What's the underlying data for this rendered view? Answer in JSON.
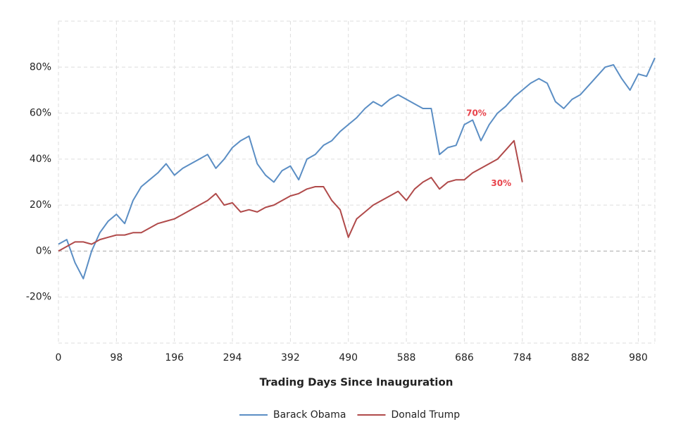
{
  "chart_data": {
    "type": "line",
    "xlabel": "Trading Days Since Inauguration",
    "x": [
      0,
      14,
      28,
      42,
      56,
      70,
      84,
      98,
      112,
      126,
      140,
      154,
      168,
      182,
      196,
      210,
      224,
      238,
      252,
      266,
      280,
      294,
      308,
      322,
      336,
      350,
      364,
      378,
      392,
      406,
      420,
      434,
      448,
      462,
      476,
      490,
      504,
      518,
      532,
      546,
      560,
      574,
      588,
      602,
      616,
      630,
      644,
      658,
      672,
      686,
      700,
      714,
      728,
      742,
      756,
      770,
      784,
      798,
      812,
      826,
      840,
      854,
      868,
      882,
      896,
      910,
      924,
      938,
      952,
      966,
      980,
      994,
      1008
    ],
    "series": [
      {
        "name": "Barack Obama",
        "color": "#5b8ec4",
        "values": [
          3,
          5,
          -5,
          -12,
          0,
          8,
          13,
          16,
          12,
          22,
          28,
          31,
          34,
          38,
          33,
          36,
          38,
          40,
          42,
          36,
          40,
          45,
          48,
          50,
          38,
          33,
          30,
          35,
          37,
          31,
          40,
          42,
          46,
          48,
          52,
          55,
          58,
          62,
          65,
          63,
          66,
          68,
          66,
          64,
          62,
          62,
          42,
          45,
          46,
          55,
          57,
          48,
          55,
          60,
          63,
          67,
          70,
          73,
          75,
          73,
          65,
          62,
          66,
          68,
          72,
          76,
          80,
          81,
          75,
          70,
          77,
          76,
          84
        ]
      },
      {
        "name": "Donald Trump",
        "color": "#b04a4a",
        "values": [
          0,
          2,
          4,
          4,
          3,
          5,
          6,
          7,
          7,
          8,
          8,
          10,
          12,
          13,
          14,
          16,
          18,
          20,
          22,
          25,
          20,
          21,
          17,
          18,
          17,
          19,
          20,
          22,
          24,
          25,
          27,
          28,
          28,
          22,
          18,
          6,
          14,
          17,
          20,
          22,
          24,
          26,
          22,
          27,
          30,
          32,
          27,
          30,
          31,
          31,
          34,
          36,
          38,
          40,
          44,
          48,
          30,
          null,
          null,
          null,
          null,
          null,
          null,
          null,
          null,
          null,
          null,
          null,
          null,
          null,
          null,
          null,
          null
        ]
      }
    ],
    "annotations": [
      {
        "text": "70%",
        "x": 742,
        "y": 70
      },
      {
        "text": "30%",
        "x": 784,
        "y": 30
      }
    ],
    "xlim": [
      0,
      1008
    ],
    "ylim": [
      -40,
      100
    ],
    "xticks": [
      0,
      98,
      196,
      294,
      392,
      490,
      588,
      686,
      784,
      882,
      980
    ],
    "yticks": [
      {
        "value": -20,
        "label": "-20%"
      },
      {
        "value": 0,
        "label": "0%"
      },
      {
        "value": 20,
        "label": "20%"
      },
      {
        "value": 40,
        "label": "40%"
      },
      {
        "value": 60,
        "label": "60%"
      },
      {
        "value": 80,
        "label": "80%"
      }
    ],
    "grid": true,
    "legend": "bottom"
  }
}
